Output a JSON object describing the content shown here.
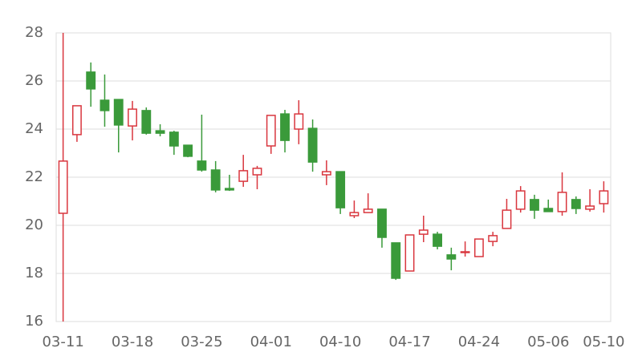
{
  "chart_data": {
    "type": "candlestick",
    "categories": [
      "03-11",
      null,
      null,
      null,
      null,
      "03-18",
      null,
      null,
      null,
      null,
      "03-25",
      null,
      null,
      null,
      null,
      "04-01",
      null,
      null,
      null,
      null,
      "04-10",
      null,
      null,
      null,
      null,
      "04-17",
      null,
      null,
      null,
      null,
      "04-24",
      null,
      null,
      null,
      null,
      "05-06",
      null,
      null,
      null,
      "05-10"
    ],
    "open": [
      20.5,
      23.77,
      26.37,
      25.2,
      25.23,
      24.13,
      24.77,
      23.93,
      23.87,
      23.33,
      22.67,
      22.3,
      21.53,
      21.83,
      22.1,
      23.3,
      24.63,
      24.0,
      24.03,
      22.1,
      22.23,
      20.4,
      20.53,
      20.67,
      19.27,
      18.1,
      19.63,
      19.63,
      18.77,
      18.9,
      18.7,
      19.33,
      19.87,
      20.67,
      21.07,
      20.7,
      20.57,
      21.07,
      20.67,
      20.9
    ],
    "high": [
      28,
      24.97,
      26.77,
      26.27,
      25.23,
      25.17,
      24.9,
      24.2,
      23.93,
      23.33,
      24.6,
      22.67,
      22.1,
      22.93,
      22.47,
      24.57,
      24.8,
      25.2,
      24.4,
      22.7,
      22.23,
      21.03,
      21.33,
      20.67,
      19.27,
      19.6,
      20.4,
      19.73,
      19.07,
      19.33,
      19.43,
      19.73,
      21.1,
      21.63,
      21.27,
      21.07,
      22.2,
      21.2,
      21.5,
      21.83
    ],
    "low": [
      16,
      23.47,
      24.93,
      24.1,
      23.03,
      23.53,
      23.77,
      23.7,
      22.93,
      22.83,
      22.23,
      21.37,
      21.43,
      21.6,
      21.5,
      22.97,
      23.03,
      23.37,
      22.23,
      21.67,
      20.47,
      20.3,
      20.53,
      19.07,
      17.73,
      18.1,
      19.3,
      19.0,
      18.13,
      18.7,
      18.7,
      19.13,
      19.87,
      20.53,
      20.27,
      20.57,
      20.4,
      20.47,
      20.57,
      20.53
    ],
    "close": [
      22.67,
      24.97,
      25.67,
      24.77,
      24.17,
      24.83,
      23.83,
      23.83,
      23.3,
      22.87,
      22.3,
      21.47,
      21.47,
      22.27,
      22.37,
      24.57,
      23.53,
      24.63,
      22.63,
      22.23,
      20.73,
      20.53,
      20.67,
      19.5,
      17.8,
      19.6,
      19.8,
      19.13,
      18.6,
      18.9,
      19.43,
      19.57,
      20.63,
      21.43,
      20.63,
      20.57,
      21.37,
      20.7,
      20.8,
      21.43
    ],
    "up_color": "#d9363e",
    "down_color": "#3a9a3a",
    "ylim": [
      16,
      28
    ],
    "yticks": [
      16,
      18,
      20,
      22,
      24,
      26,
      28
    ],
    "grid": true
  }
}
